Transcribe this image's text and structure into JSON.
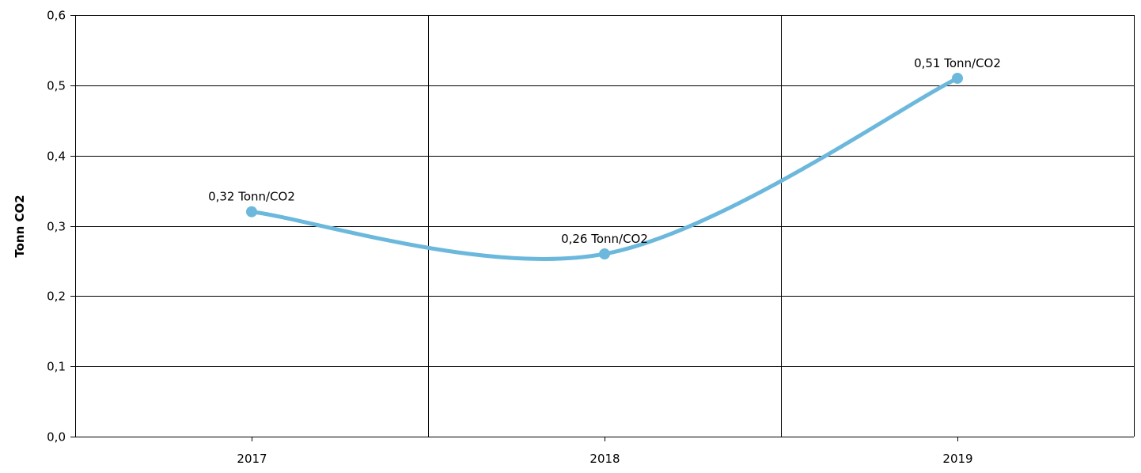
{
  "chart_data": {
    "type": "line",
    "title": "",
    "xlabel": "",
    "ylabel": "Tonn CO2",
    "categories": [
      "2017",
      "2018",
      "2019"
    ],
    "series": [
      {
        "values": [
          0.32,
          0.26,
          0.51
        ],
        "data_labels": [
          "0,32 Tonn/CO2",
          "0,26 Tonn/CO2",
          "0,51 Tonn/CO2"
        ],
        "color": "#6bb8dc",
        "smooth": true,
        "markers": true
      }
    ],
    "ylim": [
      0,
      0.6
    ],
    "yticks": [
      0.0,
      0.1,
      0.2,
      0.3,
      0.4,
      0.5,
      0.6
    ],
    "ytick_labels": [
      "0,0",
      "0,1",
      "0,2",
      "0,3",
      "0,4",
      "0,5",
      "0,6"
    ],
    "grid": true,
    "legend": "none",
    "colors": {
      "line": "#6bb8dc",
      "grid": "#000000",
      "background": "#ffffff"
    }
  }
}
